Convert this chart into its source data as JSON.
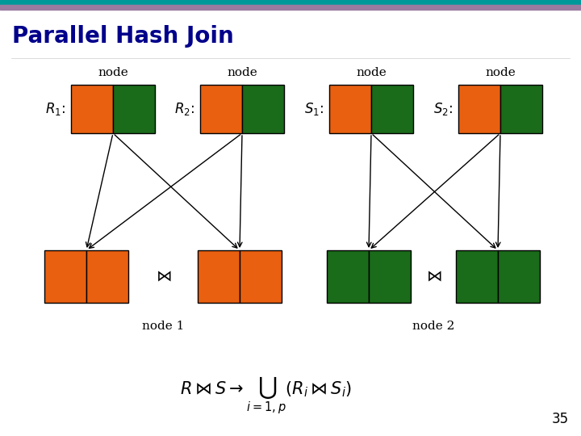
{
  "title": "Parallel Hash Join",
  "title_color": "#00008B",
  "title_fontsize": 20,
  "bg_color": "#FFFFFF",
  "orange": "#E86010",
  "green": "#1A6B1A",
  "teal_bar": "#009999",
  "mauve_bar": "#9B7BA0",
  "slide_number": "35",
  "node_labels": [
    "node",
    "node",
    "node",
    "node"
  ],
  "rel_labels_math": [
    "R_1{:}",
    "R_2{:}",
    "S_1{:}",
    "S_2{:}"
  ],
  "node1_label": "node 1",
  "node2_label": "node 2"
}
